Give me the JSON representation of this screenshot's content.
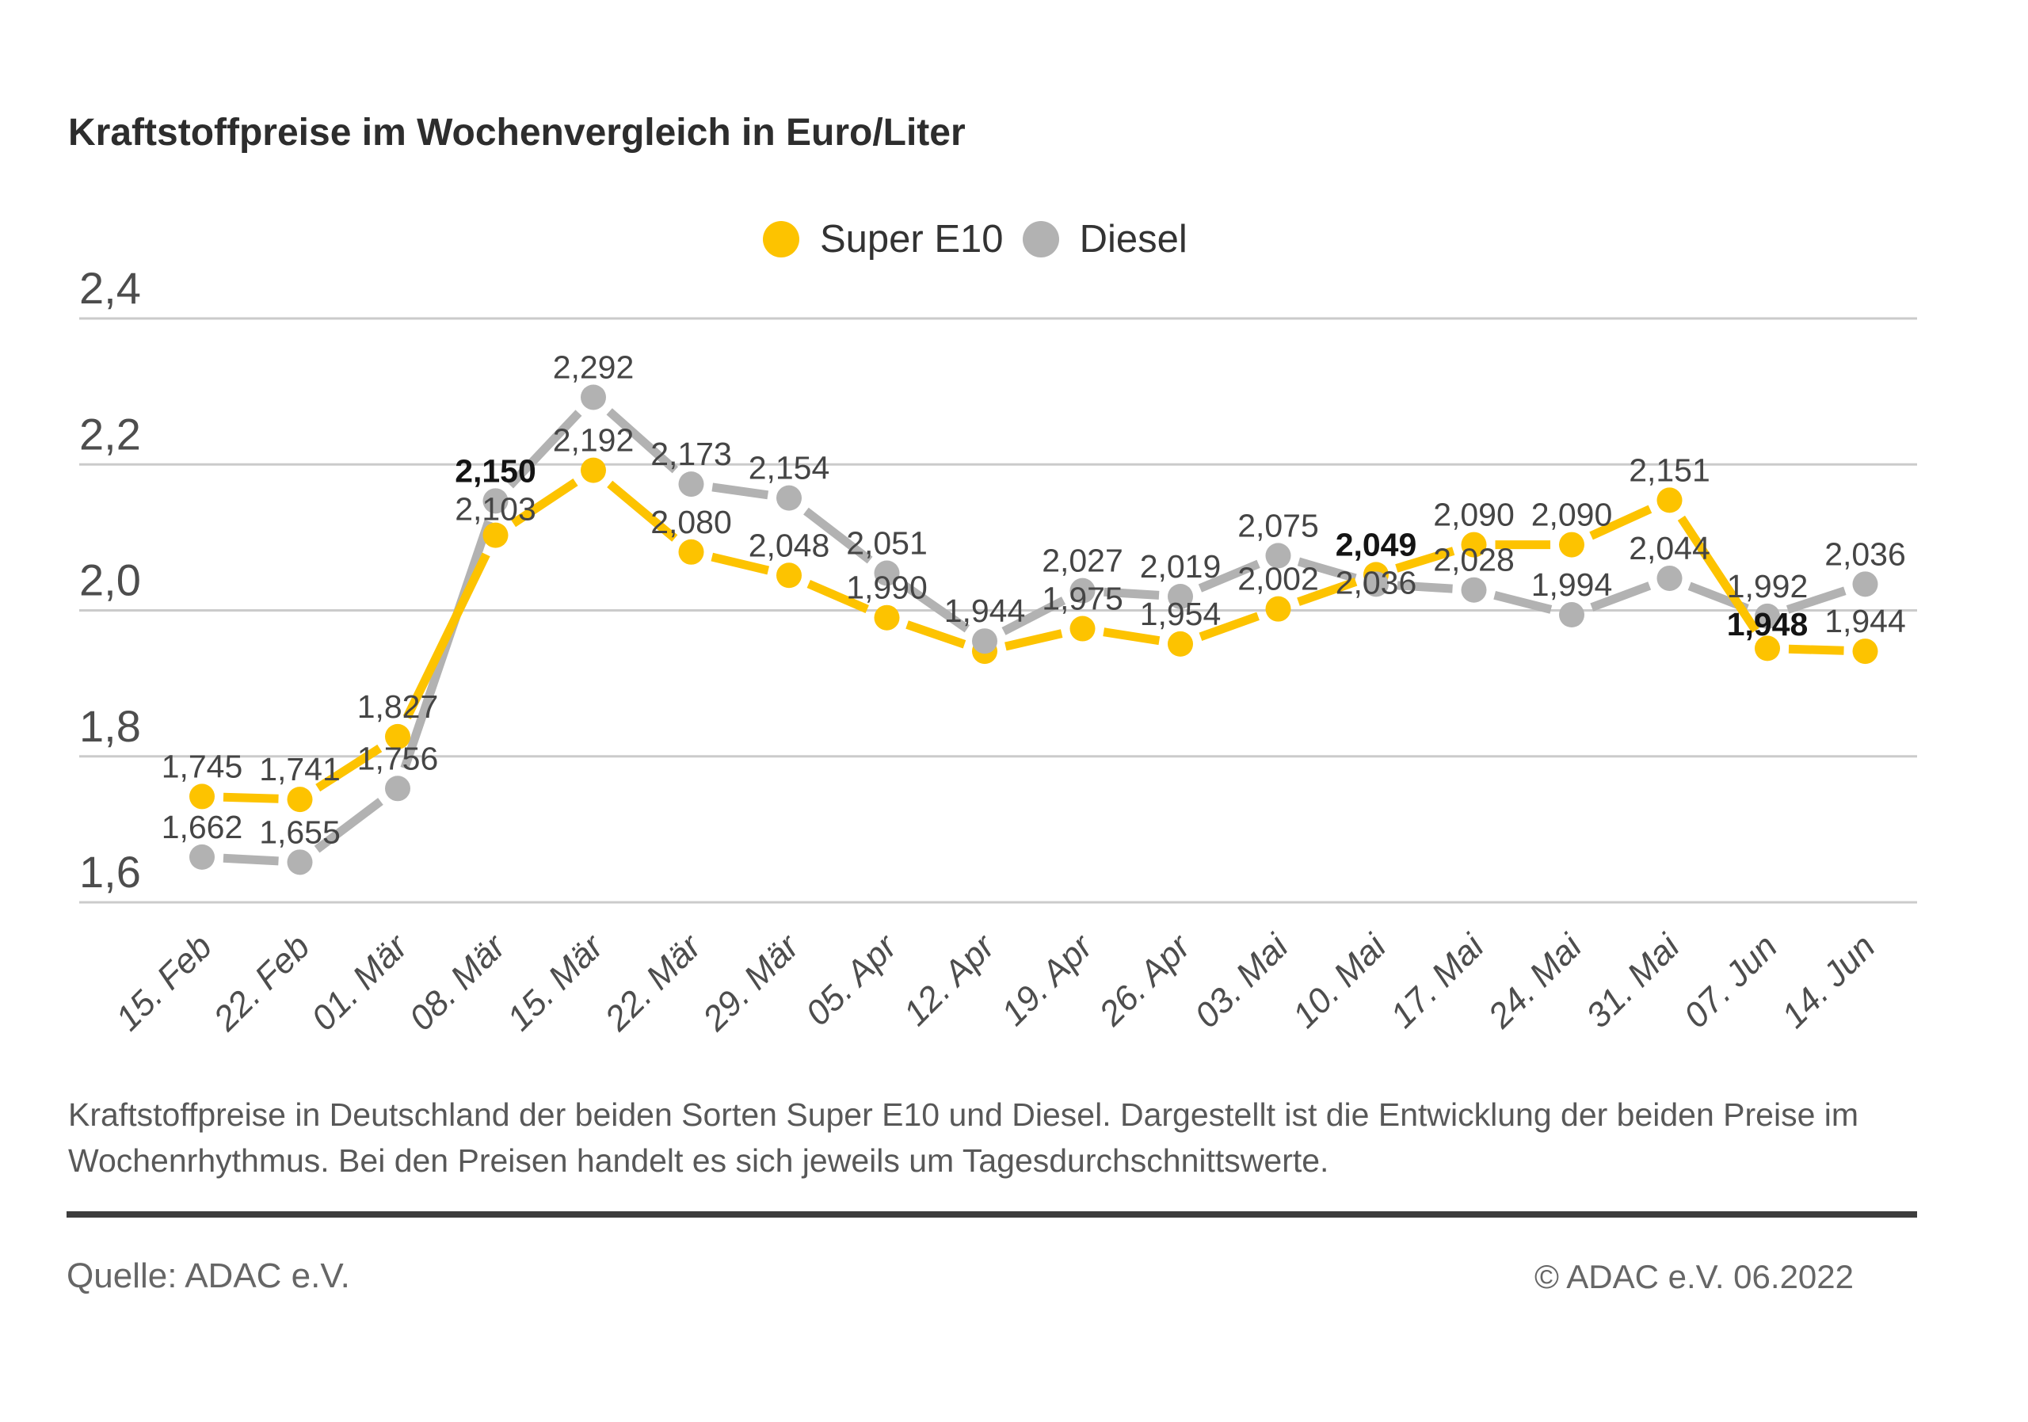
{
  "page": {
    "title": "Kraftstoffpreise im Wochenvergleich in Euro/Liter",
    "description_lines": [
      "Kraftstoffpreise in Deutschland der beiden Sorten Super E10 und Diesel. Dargestellt ist die Entwicklung der beiden Preise im",
      "Wochenrhythmus. Bei den Preisen handelt es sich jeweils um Tagesdurchschnittswerte."
    ],
    "source": "Quelle: ADAC e.V.",
    "copyright": "© ADAC e.V. 06.2022"
  },
  "legend": [
    {
      "label": "Super E10",
      "color": "#FDC300"
    },
    {
      "label": "Diesel",
      "color": "#B2B2B2"
    }
  ],
  "colors": {
    "super_e10": "#FDC300",
    "diesel": "#B2B2B2",
    "gridline": "#cbcbcb",
    "axis_text": "#4d4d4d",
    "label_text": "#454545",
    "label_text_bold": "#141414"
  },
  "chart_data": {
    "type": "line",
    "title": "Kraftstoffpreise im Wochenvergleich in Euro/Liter",
    "unit": "Euro/Liter",
    "grid": true,
    "legend_position": "top-center",
    "ylim": [
      1.52,
      2.46
    ],
    "yticks": [
      {
        "value": 2.4,
        "label": "2,4"
      },
      {
        "value": 2.2,
        "label": "2,2"
      },
      {
        "value": 2.0,
        "label": "2,0"
      },
      {
        "value": 1.8,
        "label": "1,8"
      },
      {
        "value": 1.6,
        "label": "1,6"
      }
    ],
    "x_categories": [
      "15. Feb",
      "22. Feb",
      "01. Mär",
      "08. Mär",
      "15. Mär",
      "22. Mär",
      "29. Mär",
      "05. Apr",
      "12. Apr",
      "19. Apr",
      "26. Apr",
      "03. Mai",
      "10. Mai",
      "17. Mai",
      "24. Mai",
      "31. Mai",
      "07. Jun",
      "14. Jun"
    ],
    "series": [
      {
        "name": "Super E10",
        "color": "#FDC300",
        "values": [
          1.745,
          1.741,
          1.827,
          2.103,
          2.192,
          2.08,
          2.048,
          1.99,
          1.944,
          1.975,
          1.954,
          2.002,
          2.049,
          2.09,
          2.09,
          2.151,
          1.948,
          1.944
        ],
        "labels": [
          "1,745",
          "1,741",
          "1,827",
          "2,103",
          "2,192",
          "2,080",
          "2,048",
          "1,990",
          "1,944",
          "1,975",
          "1,954",
          "2,002",
          "2,049",
          "2,090",
          "2,090",
          "2,151",
          "1,948",
          "1,944"
        ],
        "bold_label_indices": [
          12,
          16
        ]
      },
      {
        "name": "Diesel",
        "color": "#B2B2B2",
        "values": [
          1.662,
          1.655,
          1.756,
          2.15,
          2.292,
          2.173,
          2.154,
          2.051,
          1.958,
          2.027,
          2.019,
          2.075,
          2.036,
          2.028,
          1.994,
          2.044,
          1.992,
          2.036
        ],
        "labels": [
          "1,662",
          "1,655",
          "1,756",
          "2,150",
          "2,292",
          "2,173",
          "2,154",
          "2,051",
          null,
          "2,027",
          "2,019",
          "2,075",
          "2,036",
          "2,028",
          "1,994",
          "2,044",
          "1,992",
          "2,036"
        ],
        "bold_label_indices": [
          3
        ]
      }
    ]
  }
}
